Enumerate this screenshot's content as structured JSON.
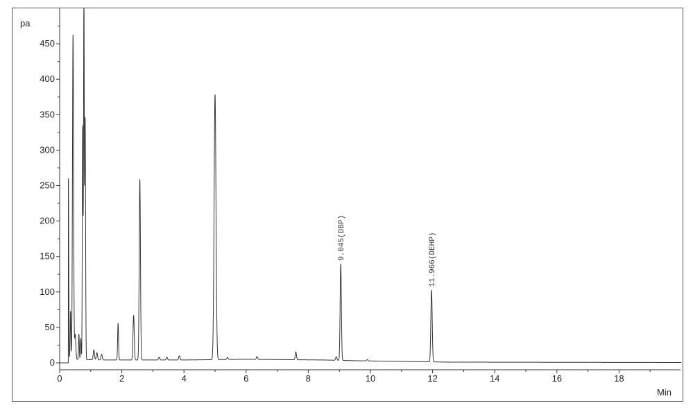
{
  "chart_data": {
    "type": "line",
    "title": "",
    "xlabel": "Min",
    "ylabel": "pa",
    "xlim": [
      0,
      20
    ],
    "ylim": [
      -10,
      500
    ],
    "x_ticks": [
      "0",
      "2",
      "4",
      "6",
      "8",
      "10",
      "12",
      "14",
      "16",
      "18"
    ],
    "y_ticks": [
      "0",
      "50",
      "100",
      "150",
      "200",
      "250",
      "300",
      "350",
      "400",
      "450"
    ],
    "grid": false,
    "line_color": "#333333",
    "baseline": [
      [
        0,
        0
      ],
      [
        0.28,
        0
      ],
      [
        0.3,
        5
      ],
      [
        1.5,
        4
      ],
      [
        4,
        4
      ],
      [
        6,
        5
      ],
      [
        8.5,
        4
      ],
      [
        9.5,
        3
      ],
      [
        11,
        2
      ],
      [
        12.5,
        1
      ],
      [
        20,
        0.5
      ]
    ],
    "peaks": [
      {
        "rt": 0.28,
        "height": 260,
        "width": 0.012
      },
      {
        "rt": 0.35,
        "height": 68,
        "width": 0.012
      },
      {
        "rt": 0.43,
        "height": 458,
        "width": 0.018
      },
      {
        "rt": 0.5,
        "height": 35,
        "width": 0.02
      },
      {
        "rt": 0.62,
        "height": 36,
        "width": 0.012
      },
      {
        "rt": 0.68,
        "height": 30,
        "width": 0.012
      },
      {
        "rt": 0.74,
        "height": 328,
        "width": 0.012
      },
      {
        "rt": 0.78,
        "height": 520,
        "width": 0.012
      },
      {
        "rt": 0.82,
        "height": 340,
        "width": 0.014
      },
      {
        "rt": 1.1,
        "height": 14,
        "width": 0.02
      },
      {
        "rt": 1.2,
        "height": 10,
        "width": 0.02
      },
      {
        "rt": 1.35,
        "height": 8,
        "width": 0.02
      },
      {
        "rt": 1.88,
        "height": 52,
        "width": 0.015
      },
      {
        "rt": 2.38,
        "height": 63,
        "width": 0.02
      },
      {
        "rt": 2.58,
        "height": 255,
        "width": 0.02
      },
      {
        "rt": 3.2,
        "height": 4,
        "width": 0.02
      },
      {
        "rt": 3.45,
        "height": 4,
        "width": 0.02
      },
      {
        "rt": 3.85,
        "height": 6,
        "width": 0.02
      },
      {
        "rt": 5.0,
        "height": 374,
        "width": 0.03
      },
      {
        "rt": 5.4,
        "height": 3,
        "width": 0.02
      },
      {
        "rt": 6.35,
        "height": 4,
        "width": 0.02
      },
      {
        "rt": 7.6,
        "height": 11,
        "width": 0.02
      },
      {
        "rt": 8.9,
        "height": 5,
        "width": 0.02
      },
      {
        "rt": 9.045,
        "height": 136,
        "width": 0.02
      },
      {
        "rt": 9.9,
        "height": 2,
        "width": 0.02
      },
      {
        "rt": 11.966,
        "height": 101,
        "width": 0.022
      }
    ],
    "annotations": [
      {
        "label": "9.045(DBP)",
        "x": 9.045,
        "y": 139
      },
      {
        "label": "11.966(DEHP)",
        "x": 11.966,
        "y": 102
      }
    ]
  }
}
